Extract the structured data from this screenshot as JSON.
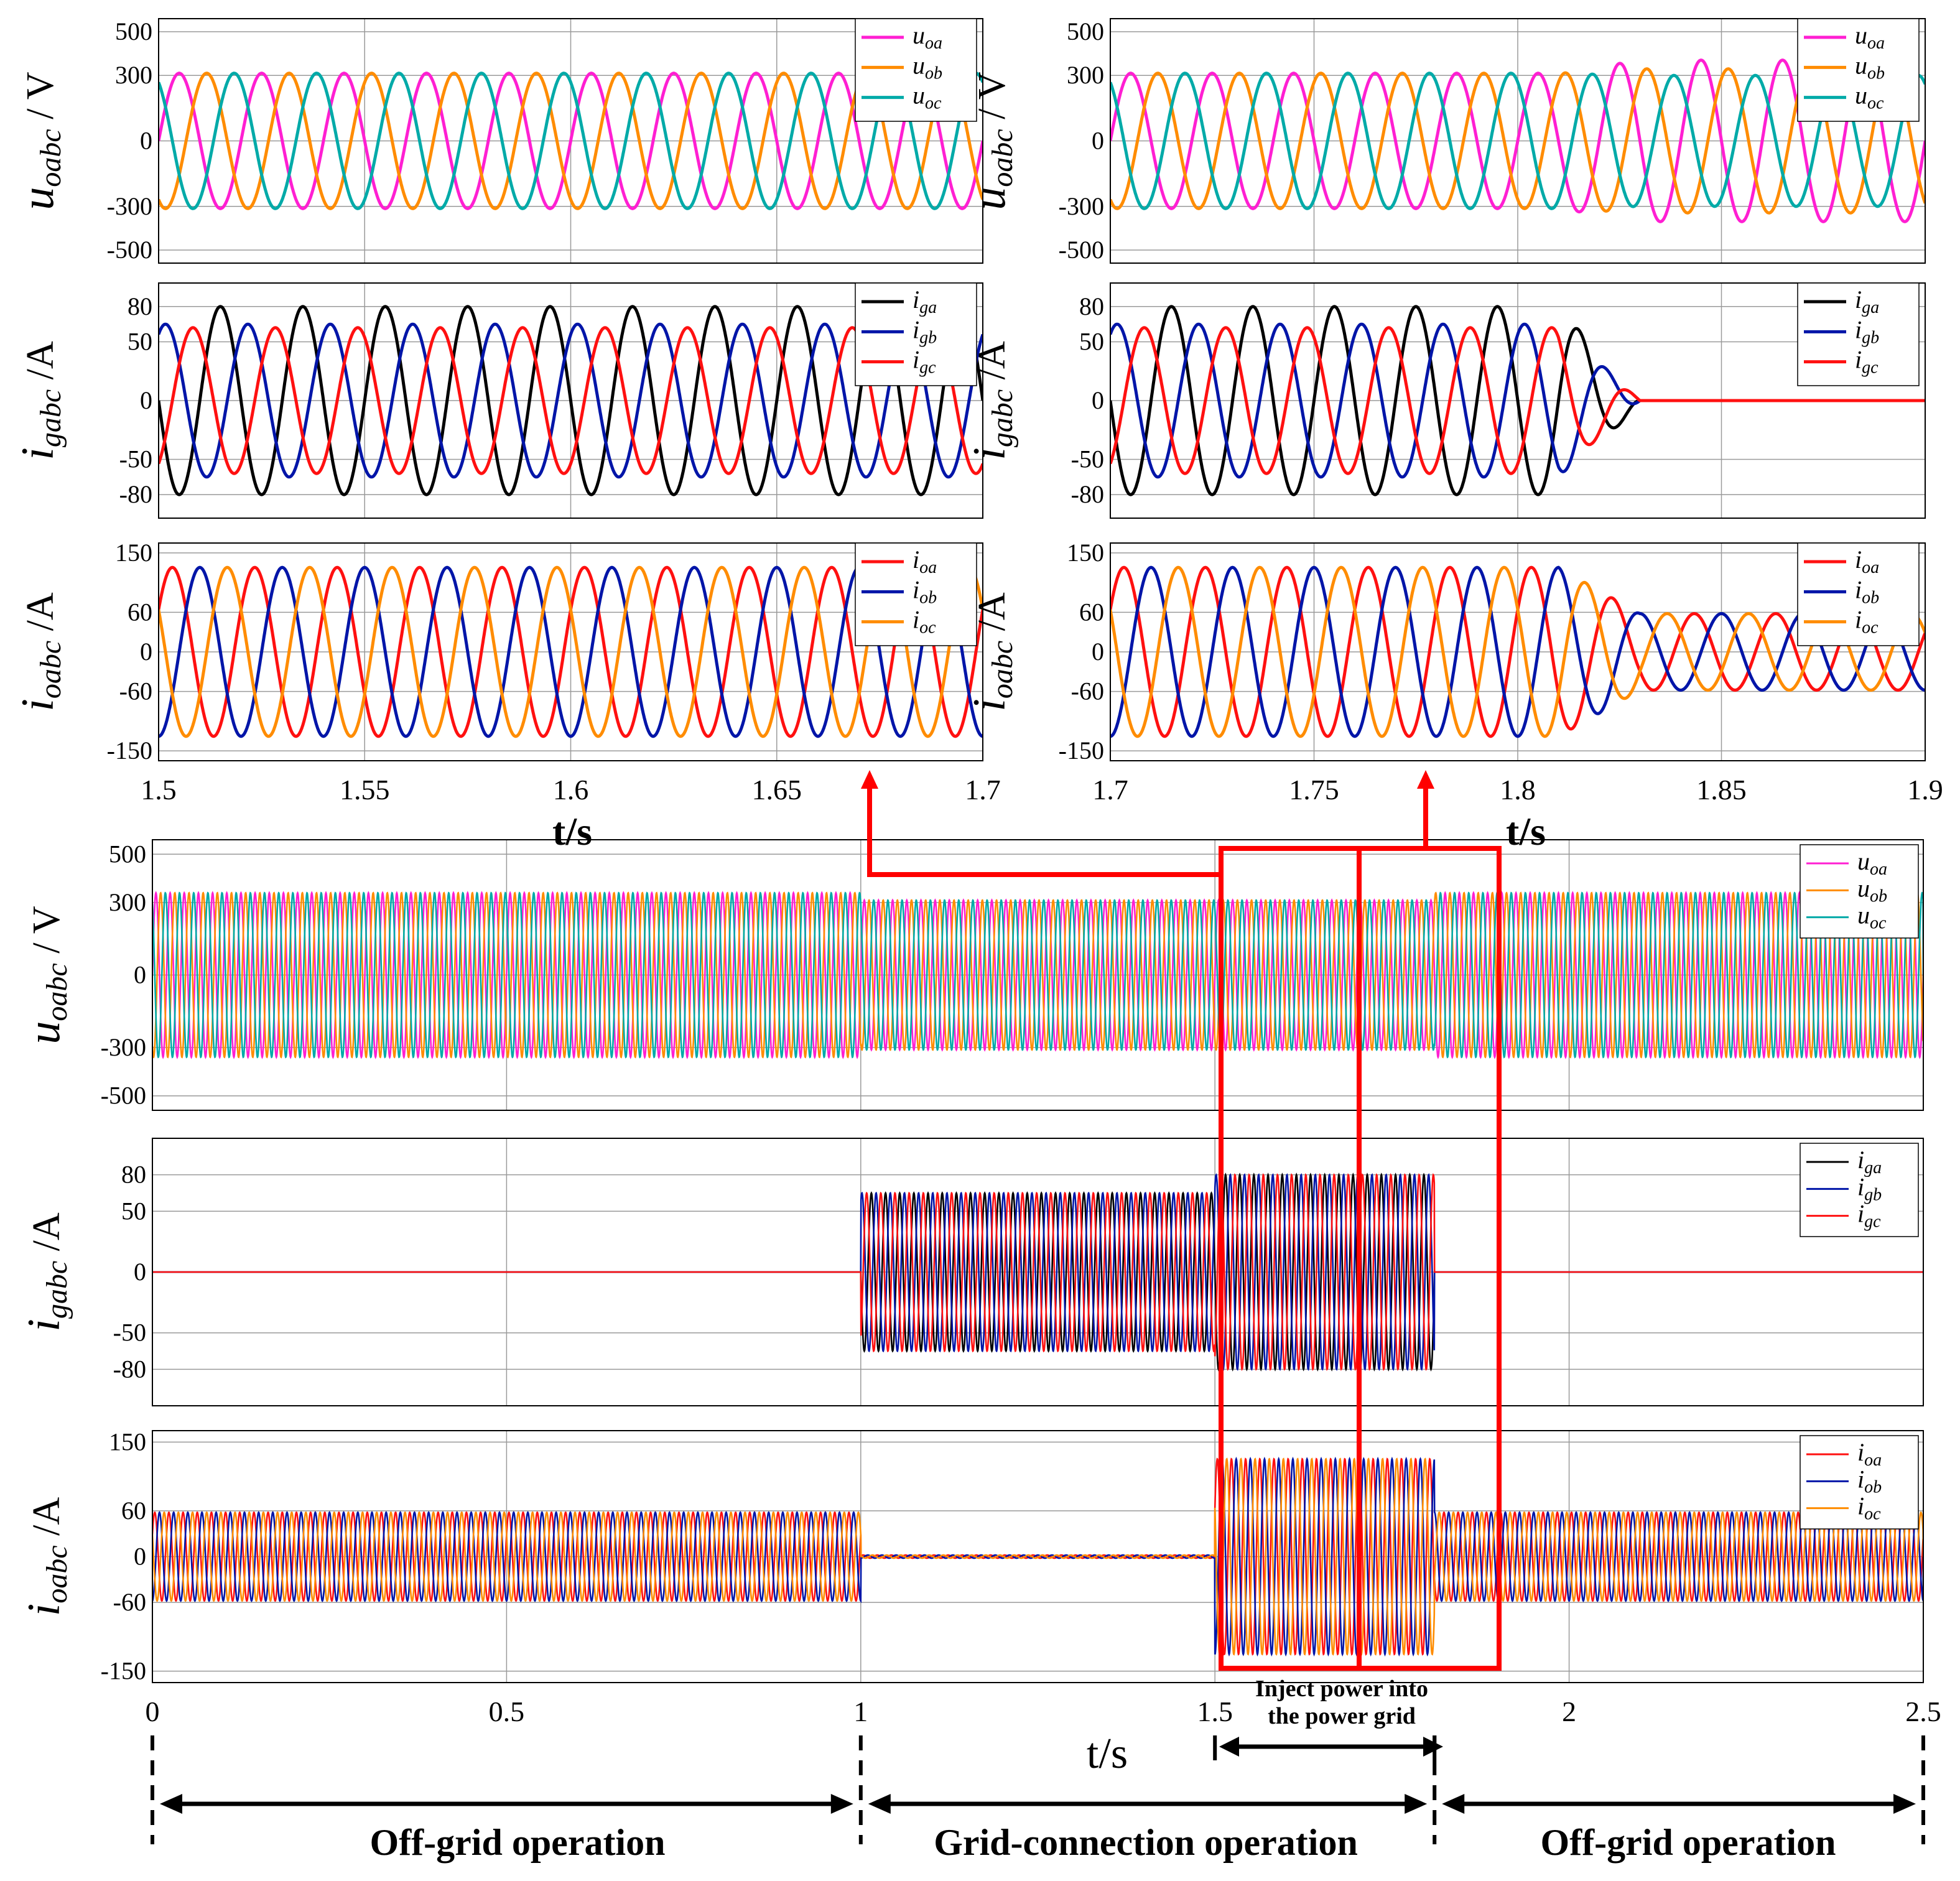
{
  "chart_data": [
    {
      "id": "top-left-uoabc",
      "type": "line",
      "xlim": [
        1.5,
        1.7
      ],
      "ylim": [
        -560,
        560
      ],
      "yticks": [
        500,
        300,
        0,
        -300,
        -500
      ],
      "ylabel_main": "u",
      "ylabel_sub": "oabc",
      "ylabel_unit": " / V",
      "legend": [
        "u_oa",
        "u_ob",
        "u_oc"
      ],
      "series": [
        {
          "name": "u_oa",
          "color": "#ff1fd2",
          "amplitude": 310,
          "phase_deg": 0
        },
        {
          "name": "u_ob",
          "color": "#ff8c00",
          "amplitude": 310,
          "phase_deg": -120
        },
        {
          "name": "u_oc",
          "color": "#00aaa8",
          "amplitude": 310,
          "phase_deg": 120
        }
      ]
    },
    {
      "id": "top-left-igabc",
      "type": "line",
      "xlim": [
        1.5,
        1.7
      ],
      "ylim": [
        -100,
        100
      ],
      "yticks": [
        80,
        50,
        0,
        -50,
        -80
      ],
      "ylabel_main": "i",
      "ylabel_sub": "gabc",
      "ylabel_unit": " /A",
      "legend": [
        "i_ga",
        "i_gb",
        "i_gc"
      ],
      "series": [
        {
          "name": "i_ga",
          "color": "#000000",
          "amplitude": 80,
          "phase_deg": 180
        },
        {
          "name": "i_gb",
          "color": "#0015a8",
          "amplitude": 65,
          "phase_deg": 60
        },
        {
          "name": "i_gc",
          "color": "#ff1010",
          "amplitude": 62,
          "phase_deg": -60
        }
      ]
    },
    {
      "id": "top-left-ioabc",
      "type": "line",
      "xlim": [
        1.5,
        1.7
      ],
      "ylim": [
        -165,
        165
      ],
      "yticks": [
        150,
        60,
        0,
        -60,
        -150
      ],
      "ylabel_main": "i",
      "ylabel_sub": "oabc",
      "ylabel_unit": " /A",
      "xticks": [
        "1.5",
        "1.55",
        "1.6",
        "1.65",
        "1.7"
      ],
      "legend": [
        "i_oa",
        "i_ob",
        "i_oc"
      ],
      "series": [
        {
          "name": "i_oa",
          "color": "#ff1010",
          "amplitude": 128,
          "phase_deg": 30
        },
        {
          "name": "i_ob",
          "color": "#0015a8",
          "amplitude": 128,
          "phase_deg": -90
        },
        {
          "name": "i_oc",
          "color": "#ff8c00",
          "amplitude": 128,
          "phase_deg": 150
        }
      ]
    },
    {
      "id": "top-right-uoabc",
      "type": "line",
      "xlim": [
        1.7,
        1.9
      ],
      "ylim": [
        -560,
        560
      ],
      "yticks": [
        500,
        300,
        0,
        -300,
        -500
      ],
      "ylabel_main": "u",
      "ylabel_sub": "oabc",
      "ylabel_unit": " / V",
      "legend": [
        "u_oa",
        "u_ob",
        "u_oc"
      ],
      "switch_time": 1.81,
      "series": [
        {
          "name": "u_oa",
          "color": "#ff1fd2",
          "amplitude": 310,
          "amplitude_after": 370,
          "phase_deg": 0
        },
        {
          "name": "u_ob",
          "color": "#ff8c00",
          "amplitude": 310,
          "amplitude_after": 330,
          "phase_deg": -120
        },
        {
          "name": "u_oc",
          "color": "#00aaa8",
          "amplitude": 310,
          "amplitude_after": 300,
          "phase_deg": 120
        }
      ]
    },
    {
      "id": "top-right-igabc",
      "type": "line",
      "xlim": [
        1.7,
        1.9
      ],
      "ylim": [
        -100,
        100
      ],
      "yticks": [
        80,
        50,
        0,
        -50,
        -80
      ],
      "ylabel_main": "i",
      "ylabel_sub": "gabc",
      "ylabel_unit": " /A",
      "legend": [
        "i_ga",
        "i_gb",
        "i_gc"
      ],
      "switch_time": 1.81,
      "series": [
        {
          "name": "i_ga",
          "color": "#000000",
          "amplitude": 80,
          "amplitude_after": 0,
          "phase_deg": 180
        },
        {
          "name": "i_gb",
          "color": "#0015a8",
          "amplitude": 65,
          "amplitude_after": 0,
          "phase_deg": 60
        },
        {
          "name": "i_gc",
          "color": "#ff1010",
          "amplitude": 62,
          "amplitude_after": 0,
          "phase_deg": -60
        }
      ]
    },
    {
      "id": "top-right-ioabc",
      "type": "line",
      "xlim": [
        1.7,
        1.9
      ],
      "ylim": [
        -165,
        165
      ],
      "yticks": [
        150,
        60,
        0,
        -60,
        -150
      ],
      "ylabel_main": "i",
      "ylabel_sub": "oabc",
      "ylabel_unit": " /A",
      "xticks": [
        "1.7",
        "1.75",
        "1.8",
        "1.85",
        "1.9"
      ],
      "legend": [
        "i_oa",
        "i_ob",
        "i_oc"
      ],
      "switch_time": 1.81,
      "series": [
        {
          "name": "i_oa",
          "color": "#ff1010",
          "amplitude": 128,
          "amplitude_after": 58,
          "phase_deg": 30
        },
        {
          "name": "i_ob",
          "color": "#0015a8",
          "amplitude": 128,
          "amplitude_after": 58,
          "phase_deg": -90
        },
        {
          "name": "i_oc",
          "color": "#ff8c00",
          "amplitude": 128,
          "amplitude_after": 58,
          "phase_deg": 150
        }
      ]
    },
    {
      "id": "bottom-uoabc",
      "type": "line",
      "xlim": [
        0,
        2.5
      ],
      "ylim": [
        -560,
        560
      ],
      "yticks": [
        500,
        300,
        0,
        -300,
        -500
      ],
      "ylabel_main": "u",
      "ylabel_sub": "oabc",
      "ylabel_unit": " / V",
      "legend": [
        "u_oa",
        "u_ob",
        "u_oc"
      ],
      "segments": [
        {
          "t0": 0,
          "t1": 1.0,
          "amplitude": 340
        },
        {
          "t0": 1.0,
          "t1": 1.81,
          "amplitude": 310
        },
        {
          "t0": 1.81,
          "t1": 2.5,
          "amplitude": 340
        }
      ],
      "series": [
        {
          "name": "u_oa",
          "color": "#ff1fd2",
          "phase_deg": 0
        },
        {
          "name": "u_ob",
          "color": "#ff8c00",
          "phase_deg": -120
        },
        {
          "name": "u_oc",
          "color": "#00aaa8",
          "phase_deg": 120
        }
      ]
    },
    {
      "id": "bottom-igabc",
      "type": "line",
      "xlim": [
        0,
        2.5
      ],
      "ylim": [
        -110,
        110
      ],
      "yticks": [
        80,
        50,
        0,
        -50,
        -80
      ],
      "ylabel_main": "i",
      "ylabel_sub": "gabc",
      "ylabel_unit": " /A",
      "legend": [
        "i_ga",
        "i_gb",
        "i_gc"
      ],
      "segments": [
        {
          "t0": 0,
          "t1": 1.0,
          "amplitude": 0
        },
        {
          "t0": 1.0,
          "t1": 1.5,
          "amplitude": 65
        },
        {
          "t0": 1.5,
          "t1": 1.81,
          "amplitude": 80
        },
        {
          "t0": 1.81,
          "t1": 2.5,
          "amplitude": 0
        }
      ],
      "series": [
        {
          "name": "i_ga",
          "color": "#000000",
          "phase_deg": 180
        },
        {
          "name": "i_gb",
          "color": "#0015a8",
          "phase_deg": 60
        },
        {
          "name": "i_gc",
          "color": "#ff1010",
          "phase_deg": -60
        }
      ]
    },
    {
      "id": "bottom-ioabc",
      "type": "line",
      "xlim": [
        0,
        2.5
      ],
      "ylim": [
        -165,
        165
      ],
      "yticks": [
        150,
        60,
        0,
        -60,
        -150
      ],
      "ylabel_main": "i",
      "ylabel_sub": "oabc",
      "ylabel_unit": " /A",
      "xticks": [
        "0",
        "0.5",
        "1",
        "1.5",
        "2",
        "2.5"
      ],
      "legend": [
        "i_oa",
        "i_ob",
        "i_oc"
      ],
      "segments": [
        {
          "t0": 0,
          "t1": 1.0,
          "amplitude": 58
        },
        {
          "t0": 1.0,
          "t1": 1.5,
          "amplitude": 2
        },
        {
          "t0": 1.5,
          "t1": 1.81,
          "amplitude": 128
        },
        {
          "t0": 1.81,
          "t1": 2.5,
          "amplitude": 58
        }
      ],
      "series": [
        {
          "name": "i_oa",
          "color": "#ff1010",
          "phase_deg": 30
        },
        {
          "name": "i_ob",
          "color": "#0015a8",
          "phase_deg": -90
        },
        {
          "name": "i_oc",
          "color": "#ff8c00",
          "phase_deg": 150
        }
      ]
    }
  ],
  "frequency_hz": 50,
  "labels": {
    "ts_bold": "t/s",
    "ts": "t/s",
    "inject_line1": "Inject power into",
    "inject_line2": "the power grid",
    "phase_offgrid_1": "Off-grid operation",
    "phase_grid": "Grid-connection operation",
    "phase_offgrid_2": "Off-grid operation"
  },
  "phase_marker_times": [
    0,
    1.0,
    1.81,
    2.5
  ],
  "inject_interval": [
    1.5,
    1.81
  ],
  "zoom_windows": [
    [
      1.5,
      1.7
    ],
    [
      1.7,
      1.9
    ]
  ],
  "highlight_color": "#ff0000"
}
